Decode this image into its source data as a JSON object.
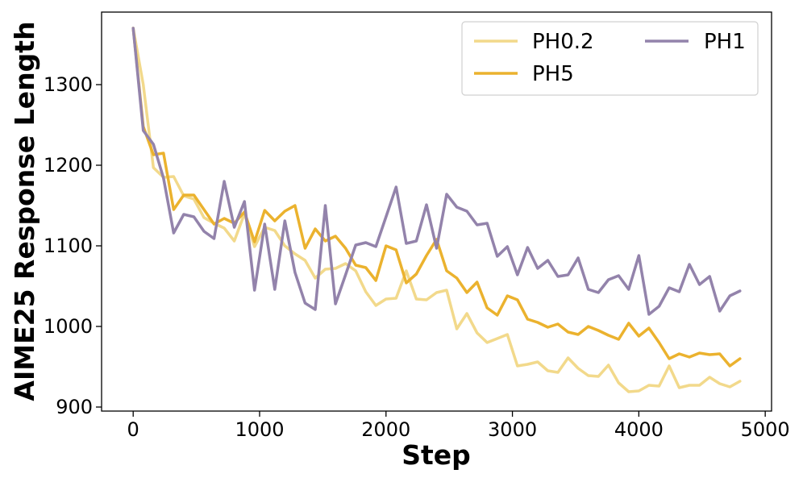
{
  "chart_data": {
    "type": "line",
    "title": "",
    "xlabel": "Step",
    "ylabel": "AIME25 Response Length",
    "xlim": [
      -250,
      5050
    ],
    "ylim": [
      895,
      1390
    ],
    "xticks": [
      0,
      1000,
      2000,
      3000,
      4000,
      5000
    ],
    "yticks": [
      900,
      1000,
      1100,
      1200,
      1300
    ],
    "grid": false,
    "legend_position": "top-right",
    "series": [
      {
        "name": "PH0.2",
        "color": "#f2d98b",
        "x": [
          0,
          80,
          160,
          240,
          320,
          400,
          480,
          560,
          640,
          720,
          800,
          880,
          960,
          1040,
          1120,
          1200,
          1280,
          1360,
          1440,
          1520,
          1600,
          1680,
          1760,
          1840,
          1920,
          2000,
          2080,
          2160,
          2240,
          2320,
          2400,
          2480,
          2560,
          2640,
          2720,
          2800,
          2880,
          2960,
          3040,
          3120,
          3200,
          3280,
          3360,
          3440,
          3520,
          3600,
          3680,
          3760,
          3840,
          3920,
          4000,
          4080,
          4160,
          4240,
          4320,
          4400,
          4480,
          4560,
          4640,
          4720,
          4800
        ],
        "y": [
          1370,
          1300,
          1197,
          1185,
          1186,
          1162,
          1158,
          1135,
          1128,
          1122,
          1106,
          1140,
          1099,
          1123,
          1119,
          1100,
          1090,
          1082,
          1060,
          1071,
          1072,
          1078,
          1069,
          1043,
          1026,
          1034,
          1035,
          1069,
          1034,
          1033,
          1042,
          1045,
          997,
          1016,
          992,
          980,
          985,
          990,
          951,
          953,
          956,
          945,
          943,
          961,
          948,
          939,
          938,
          952,
          930,
          919,
          920,
          927,
          926,
          951,
          924,
          927,
          927,
          937,
          929,
          925,
          932
        ]
      },
      {
        "name": "PH5",
        "color": "#ebb22e",
        "x": [
          0,
          80,
          160,
          240,
          320,
          400,
          480,
          560,
          640,
          720,
          800,
          880,
          960,
          1040,
          1120,
          1200,
          1280,
          1360,
          1440,
          1520,
          1600,
          1680,
          1760,
          1840,
          1920,
          2000,
          2080,
          2160,
          2240,
          2320,
          2400,
          2480,
          2560,
          2640,
          2720,
          2800,
          2880,
          2960,
          3040,
          3120,
          3200,
          3280,
          3360,
          3440,
          3520,
          3600,
          3680,
          3760,
          3840,
          3920,
          4000,
          4080,
          4160,
          4240,
          4320,
          4400,
          4480,
          4560,
          4640,
          4720,
          4800
        ],
        "y": [
          1370,
          1248,
          1213,
          1215,
          1145,
          1163,
          1163,
          1145,
          1127,
          1134,
          1128,
          1142,
          1105,
          1144,
          1131,
          1143,
          1150,
          1097,
          1121,
          1106,
          1112,
          1097,
          1076,
          1073,
          1057,
          1100,
          1095,
          1054,
          1065,
          1088,
          1108,
          1069,
          1060,
          1042,
          1055,
          1023,
          1014,
          1038,
          1033,
          1009,
          1005,
          999,
          1003,
          993,
          990,
          1000,
          995,
          989,
          984,
          1004,
          988,
          998,
          980,
          960,
          966,
          962,
          967,
          965,
          966,
          951,
          960
        ]
      },
      {
        "name": "PH1",
        "color": "#9383ab",
        "x": [
          0,
          80,
          160,
          240,
          320,
          400,
          480,
          560,
          640,
          720,
          800,
          880,
          960,
          1040,
          1120,
          1200,
          1280,
          1360,
          1440,
          1520,
          1600,
          1680,
          1760,
          1840,
          1920,
          2000,
          2080,
          2160,
          2240,
          2320,
          2400,
          2480,
          2560,
          2640,
          2720,
          2800,
          2880,
          2960,
          3040,
          3120,
          3200,
          3280,
          3360,
          3440,
          3520,
          3600,
          3680,
          3760,
          3840,
          3920,
          4000,
          4080,
          4160,
          4240,
          4320,
          4400,
          4480,
          4560,
          4640,
          4720,
          4800
        ],
        "y": [
          1370,
          1243,
          1226,
          1184,
          1116,
          1139,
          1136,
          1118,
          1109,
          1180,
          1123,
          1155,
          1045,
          1127,
          1046,
          1131,
          1067,
          1029,
          1021,
          1150,
          1028,
          1064,
          1101,
          1104,
          1099,
          1136,
          1173,
          1103,
          1106,
          1151,
          1097,
          1164,
          1148,
          1143,
          1126,
          1128,
          1087,
          1099,
          1064,
          1098,
          1072,
          1082,
          1062,
          1064,
          1085,
          1046,
          1042,
          1058,
          1063,
          1046,
          1088,
          1015,
          1025,
          1048,
          1043,
          1077,
          1052,
          1062,
          1019,
          1038,
          1044
        ]
      }
    ],
    "legend": {
      "entries": [
        "PH0.2",
        "PH5",
        "PH1"
      ]
    }
  }
}
